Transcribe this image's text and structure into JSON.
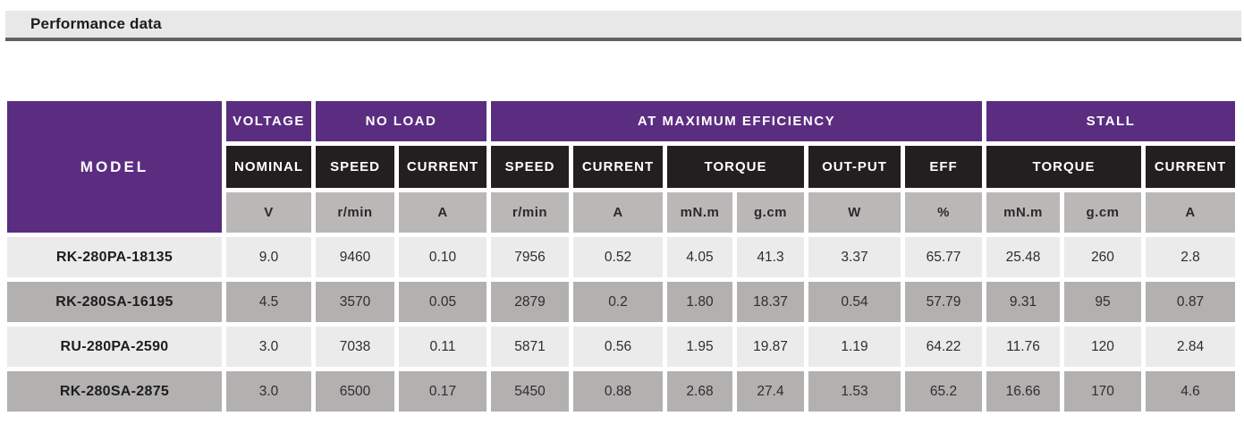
{
  "page_title": "Performance data",
  "colors": {
    "purple": "#5b2d81",
    "black": "#231f20",
    "unit_gray": "#bab7b7",
    "row_light": "#ebebeb",
    "row_dark": "#b3b0b0",
    "title_bar_bg": "#e8e8e8",
    "title_bar_border": "#5d6367"
  },
  "table": {
    "groups": {
      "model": "MODEL",
      "voltage": "VOLTAGE",
      "no_load": "NO LOAD",
      "max_efficiency": "AT MAXIMUM EFFICIENCY",
      "stall": "STALL"
    },
    "subheaders": [
      "NOMINAL",
      "SPEED",
      "CURRENT",
      "SPEED",
      "CURRENT",
      "TORQUE",
      "OUT-PUT",
      "EFF",
      "TORQUE",
      "CURRENT"
    ],
    "units": [
      "V",
      "r/min",
      "A",
      "r/min",
      "A",
      "mN.m",
      "g.cm",
      "W",
      "%",
      "mN.m",
      "g.cm",
      "A"
    ],
    "rows": [
      {
        "model": "RK-280PA-18135",
        "values": [
          "9.0",
          "9460",
          "0.10",
          "7956",
          "0.52",
          "4.05",
          "41.3",
          "3.37",
          "65.77",
          "25.48",
          "260",
          "2.8"
        ]
      },
      {
        "model": "RK-280SA-16195",
        "values": [
          "4.5",
          "3570",
          "0.05",
          "2879",
          "0.2",
          "1.80",
          "18.37",
          "0.54",
          "57.79",
          "9.31",
          "95",
          "0.87"
        ]
      },
      {
        "model": "RU-280PA-2590",
        "values": [
          "3.0",
          "7038",
          "0.11",
          "5871",
          "0.56",
          "1.95",
          "19.87",
          "1.19",
          "64.22",
          "11.76",
          "120",
          "2.84"
        ]
      },
      {
        "model": "RK-280SA-2875",
        "values": [
          "3.0",
          "6500",
          "0.17",
          "5450",
          "0.88",
          "2.68",
          "27.4",
          "1.53",
          "65.2",
          "16.66",
          "170",
          "4.6"
        ]
      }
    ]
  }
}
